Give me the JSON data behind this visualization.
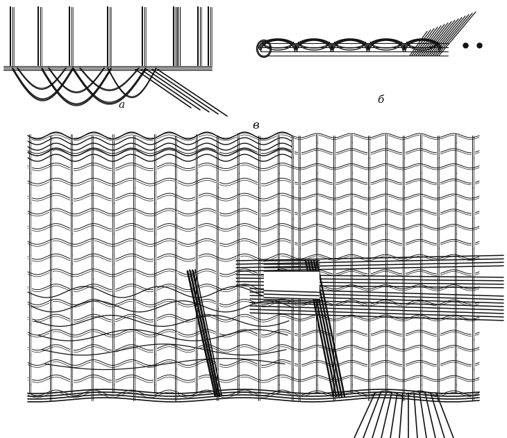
{
  "bg_color": "#ffffff",
  "line_color": "#111111",
  "label_a": "а",
  "label_b": "б",
  "label_v": "в",
  "fig_width": 7.3,
  "fig_height": 6.3,
  "dpi": 100
}
